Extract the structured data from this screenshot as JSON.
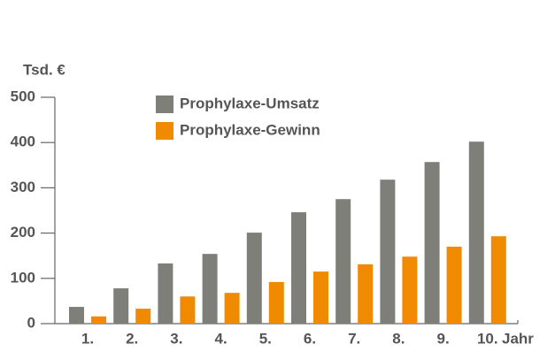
{
  "chart_data": {
    "type": "bar",
    "y_label": "Tsd. €",
    "x_label": "Jahr",
    "categories": [
      "1.",
      "2.",
      "3.",
      "4.",
      "5.",
      "6.",
      "7.",
      "8.",
      "9.",
      "10."
    ],
    "series": [
      {
        "name": "Prophylaxe-Umsatz",
        "color": "#7f7f7a",
        "values": [
          37,
          78,
          133,
          154,
          201,
          246,
          275,
          318,
          357,
          402
        ]
      },
      {
        "name": "Prophylaxe-Gewinn",
        "color": "#f08a00",
        "values": [
          16,
          33,
          60,
          68,
          92,
          115,
          131,
          148,
          170,
          193
        ]
      }
    ],
    "ylim": [
      0,
      500
    ],
    "yticks": [
      0,
      100,
      200,
      300,
      400,
      500
    ]
  }
}
